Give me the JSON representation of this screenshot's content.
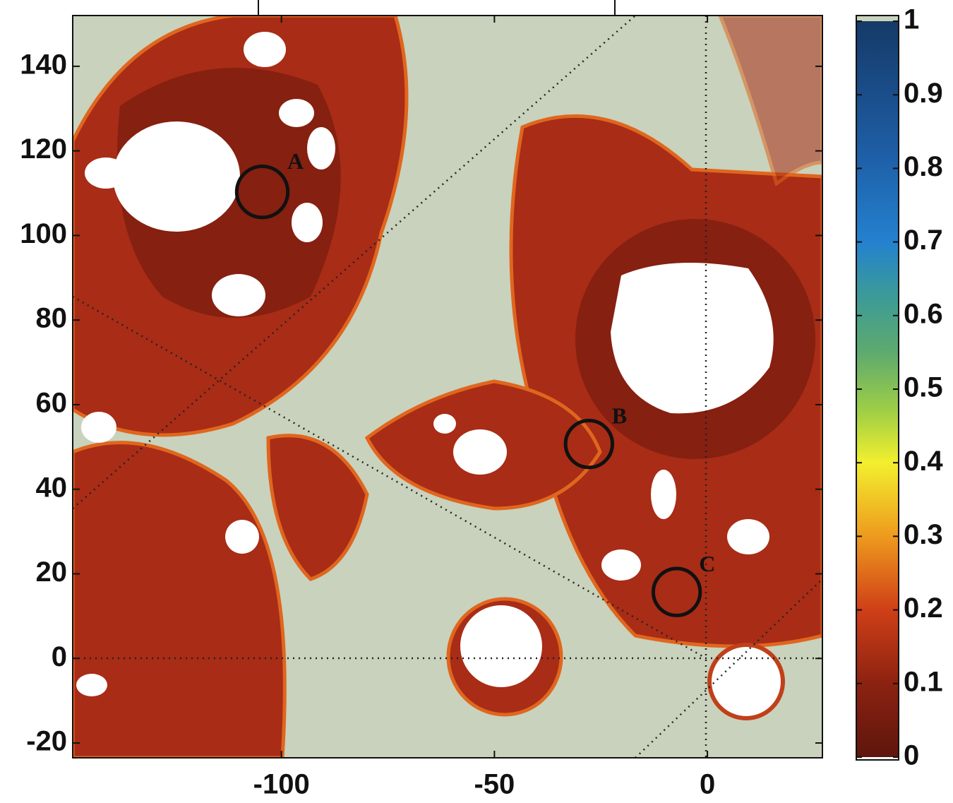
{
  "chart_data": {
    "type": "map",
    "xlim": [
      -149,
      27
    ],
    "ylim": [
      -23.5,
      152
    ],
    "xticks": [
      -100,
      -50,
      0
    ],
    "yticks": [
      -20,
      0,
      20,
      40,
      60,
      80,
      100,
      120,
      140
    ],
    "sites": [
      {
        "label": "A",
        "x": -104.5,
        "y": 110.3,
        "r": 6
      },
      {
        "label": "B",
        "x": -27.8,
        "y": 50.7,
        "r": 5.5
      },
      {
        "label": "C",
        "x": -7.2,
        "y": 15.7,
        "r": 5.5
      }
    ],
    "colorbar": {
      "lim": [
        0,
        1
      ],
      "ticks": [
        0,
        0.1,
        0.2,
        0.3,
        0.4,
        0.5,
        0.6,
        0.7,
        0.8,
        0.9,
        1
      ]
    }
  }
}
